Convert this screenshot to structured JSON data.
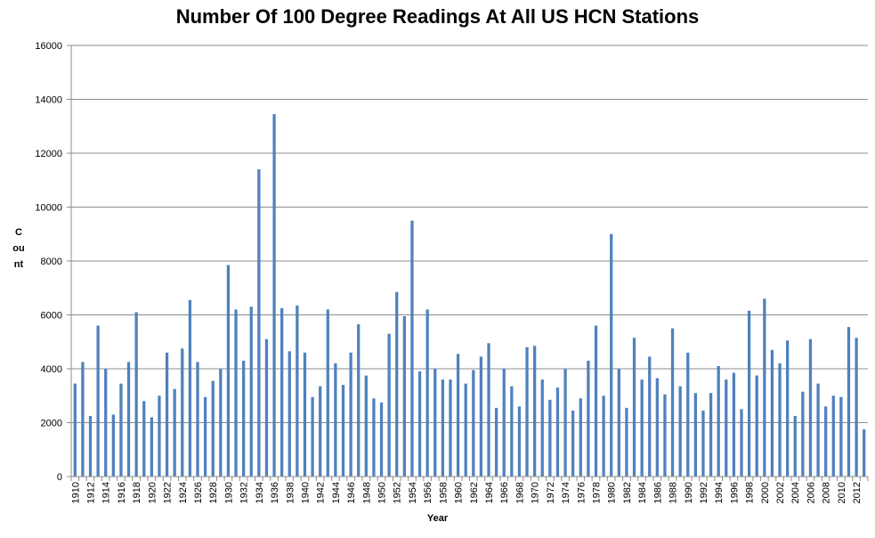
{
  "chart_data": {
    "type": "bar",
    "title": "Number Of 100 Degree Readings At All US HCN Stations",
    "xlabel": "Year",
    "ylabel": "Count",
    "ylim": [
      0,
      16000
    ],
    "yticks": [
      0,
      2000,
      4000,
      6000,
      8000,
      10000,
      12000,
      14000,
      16000
    ],
    "grid": true,
    "bar_color": "#4f81bd",
    "categories": [
      "1910",
      "1911",
      "1912",
      "1913",
      "1914",
      "1915",
      "1916",
      "1917",
      "1918",
      "1919",
      "1920",
      "1921",
      "1922",
      "1923",
      "1924",
      "1925",
      "1926",
      "1927",
      "1928",
      "1929",
      "1930",
      "1931",
      "1932",
      "1933",
      "1934",
      "1935",
      "1936",
      "1937",
      "1938",
      "1939",
      "1940",
      "1941",
      "1942",
      "1943",
      "1944",
      "1945",
      "1946",
      "1947",
      "1948",
      "1949",
      "1950",
      "1951",
      "1952",
      "1953",
      "1954",
      "1955",
      "1956",
      "1957",
      "1958",
      "1959",
      "1960",
      "1961",
      "1962",
      "1963",
      "1964",
      "1965",
      "1966",
      "1967",
      "1968",
      "1969",
      "1970",
      "1971",
      "1972",
      "1973",
      "1974",
      "1975",
      "1976",
      "1977",
      "1978",
      "1979",
      "1980",
      "1981",
      "1982",
      "1983",
      "1984",
      "1985",
      "1986",
      "1987",
      "1988",
      "1989",
      "1990",
      "1991",
      "1992",
      "1993",
      "1994",
      "1995",
      "1996",
      "1997",
      "1998",
      "1999",
      "2000",
      "2001",
      "2002",
      "2003",
      "2004",
      "2005",
      "2006",
      "2007",
      "2008",
      "2009",
      "2010",
      "2011",
      "2012",
      "2013"
    ],
    "tick_labels": [
      "1910",
      "1912",
      "1914",
      "1916",
      "1918",
      "1920",
      "1922",
      "1924",
      "1926",
      "1928",
      "1930",
      "1932",
      "1934",
      "1936",
      "1938",
      "1940",
      "1942",
      "1944",
      "1946",
      "1948",
      "1950",
      "1952",
      "1954",
      "1956",
      "1958",
      "1960",
      "1962",
      "1964",
      "1966",
      "1968",
      "1970",
      "1972",
      "1974",
      "1976",
      "1978",
      "1980",
      "1982",
      "1984",
      "1986",
      "1988",
      "1990",
      "1992",
      "1994",
      "1996",
      "1998",
      "2000",
      "2002",
      "2004",
      "2006",
      "2008",
      "2010",
      "2012"
    ],
    "values": [
      3450,
      4250,
      2250,
      5600,
      4000,
      2300,
      3450,
      4250,
      6100,
      2800,
      2200,
      3000,
      4600,
      3250,
      4750,
      6550,
      4250,
      2950,
      3550,
      4000,
      7850,
      6200,
      4300,
      6300,
      11400,
      5100,
      13450,
      6250,
      4650,
      6350,
      4600,
      2950,
      3350,
      6200,
      4200,
      3400,
      4600,
      5650,
      3750,
      2900,
      2750,
      5300,
      6850,
      5950,
      9500,
      3900,
      6200,
      4000,
      3600,
      3600,
      4550,
      3450,
      3950,
      4450,
      4950,
      2550,
      4000,
      3350,
      2600,
      4800,
      4850,
      3600,
      2850,
      3300,
      4000,
      2450,
      2900,
      4300,
      5600,
      3000,
      9000,
      4000,
      2550,
      5150,
      3600,
      4450,
      3650,
      3050,
      5500,
      3350,
      4600,
      3100,
      2450,
      3100,
      4100,
      3600,
      3850,
      2500,
      6150,
      3750,
      6600,
      4700,
      4200,
      5050,
      2250,
      3150,
      5100,
      3450,
      2600,
      3000,
      2950,
      5550,
      5150,
      1750
    ]
  }
}
